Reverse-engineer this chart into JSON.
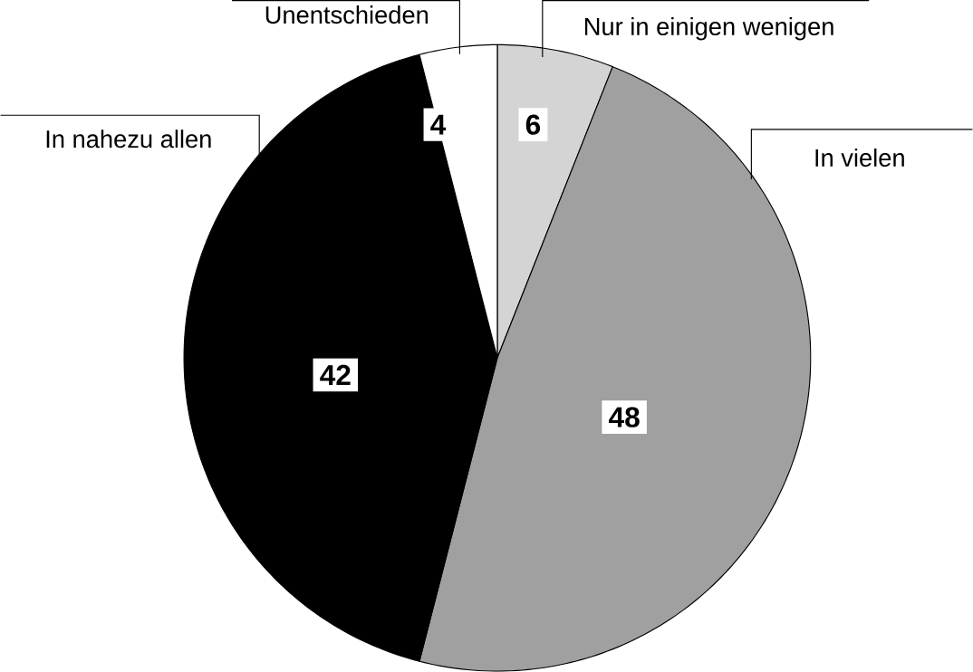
{
  "chart_data": {
    "type": "pie",
    "categories": [
      "Nur in einigen wenigen",
      "In vielen",
      "In nahezu allen",
      "Unentschieden"
    ],
    "values": [
      6,
      48,
      42,
      4
    ],
    "colors": [
      "#d4d4d4",
      "#a0a0a0",
      "#000000",
      "#ffffff"
    ],
    "data_labels": true
  }
}
